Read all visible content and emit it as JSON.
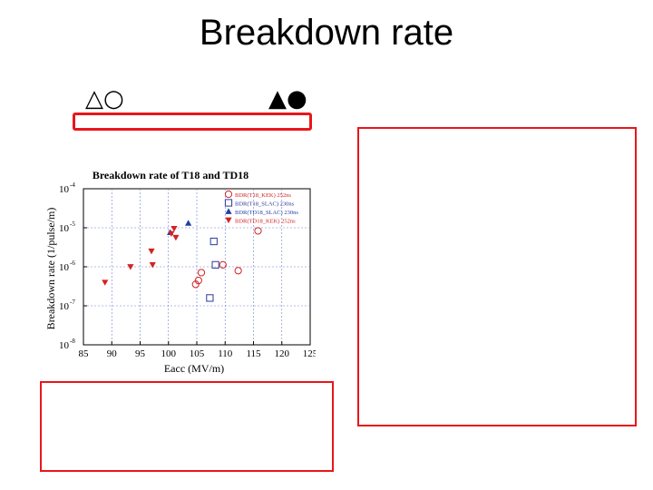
{
  "slide": {
    "title": "Breakdown rate",
    "symbols_left": "△○",
    "symbols_right": "▲●"
  },
  "colors": {
    "accent_red": "#e8161b",
    "marker_blue": "#2a3a9a",
    "marker_red": "#d42222"
  },
  "chart_data": {
    "type": "scatter",
    "title": "Breakdown rate of T18 and TD18",
    "xlabel": "Eacc (MV/m)",
    "ylabel": "Breakdown rate (1/pulse/m)",
    "x_ticks": [
      "85",
      "90",
      "95",
      "100",
      "105",
      "110",
      "115",
      "120",
      "125"
    ],
    "y_ticks": [
      "10",
      "10",
      "10",
      "10",
      "10"
    ],
    "y_tick_exponents": [
      "-4",
      "-5",
      "-6",
      "-7",
      "-8"
    ],
    "xlim": [
      85,
      125
    ],
    "ylim_log10": [
      -8,
      -4
    ],
    "grid": true,
    "legend_position": "top-right",
    "series": [
      {
        "name": "BDR(T18_KEK) 252ns",
        "marker": "circle-open",
        "color": "#d42222",
        "points": [
          [
            104.8,
            -6.45
          ],
          [
            105.3,
            -6.35
          ],
          [
            105.8,
            -6.15
          ],
          [
            109.6,
            -5.95
          ],
          [
            112.3,
            -6.1
          ],
          [
            115.8,
            -5.08
          ]
        ]
      },
      {
        "name": "BDR(T18_SLAC) 230ns",
        "marker": "square-open",
        "color": "#2a3a9a",
        "points": [
          [
            107.3,
            -6.8
          ],
          [
            108.0,
            -5.35
          ],
          [
            108.3,
            -5.95
          ]
        ]
      },
      {
        "name": "BDR(TD18_SLAC) 230ns",
        "marker": "triangle-up",
        "color": "#1f3fa6",
        "points": [
          [
            100.3,
            -5.12
          ],
          [
            103.5,
            -4.88
          ]
        ]
      },
      {
        "name": "BDR(TD18_KEK) 252ns",
        "marker": "triangle-down",
        "color": "#d42222",
        "points": [
          [
            88.8,
            -6.4
          ],
          [
            93.3,
            -6.0
          ],
          [
            97.0,
            -5.6
          ],
          [
            97.2,
            -5.95
          ],
          [
            100.5,
            -5.15
          ],
          [
            101.0,
            -5.02
          ],
          [
            101.3,
            -5.25
          ]
        ]
      }
    ]
  }
}
